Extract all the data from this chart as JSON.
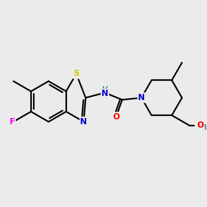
{
  "background_color": "#ebebeb",
  "atom_colors": {
    "C": "#000000",
    "N": "#0000cc",
    "O": "#ff0000",
    "S": "#cccc00",
    "F": "#ff00ff",
    "H": "#4a9090"
  },
  "bond_color": "#000000",
  "bond_width": 1.6,
  "font_size": 8.5
}
